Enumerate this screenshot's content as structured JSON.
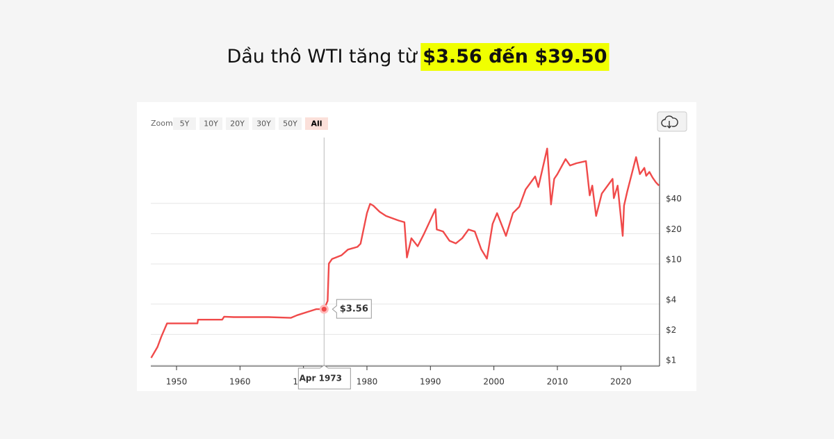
{
  "chart_data": {
    "type": "line",
    "title": "Dầu thô WTI tăng từ",
    "title_highlight": "$3.56 đến $39.50",
    "zoom_label": "Zoom",
    "zoom_buttons": [
      "5Y",
      "10Y",
      "20Y",
      "30Y",
      "50Y",
      "All"
    ],
    "log_scale": true,
    "grid": true,
    "color": "#f04a4a",
    "xlim": [
      1945.95,
      2026.1
    ],
    "xticks": [
      1950,
      1960,
      1970,
      1980,
      1990,
      2000,
      2010,
      2020
    ],
    "ylim": [
      0.97,
      180
    ],
    "yticks": [
      {
        "value": 1,
        "label": "$1"
      },
      {
        "value": 2,
        "label": "$2"
      },
      {
        "value": 4,
        "label": "$4"
      },
      {
        "value": 10,
        "label": "$10"
      },
      {
        "value": 20,
        "label": "$20"
      },
      {
        "value": 40,
        "label": "$40"
      }
    ],
    "x": [
      1946.0,
      1947.0,
      1947.6,
      1948.5,
      1953.3,
      1953.4,
      1957.2,
      1957.5,
      1959.0,
      1964.5,
      1968.0,
      1969.0,
      1971.0,
      1972.0,
      1973.25,
      1973.8,
      1974.0,
      1974.5,
      1976.0,
      1977.0,
      1978.5,
      1979.0,
      1980.0,
      1980.5,
      1981.0,
      1982.0,
      1983.0,
      1985.0,
      1985.9,
      1986.3,
      1987.0,
      1988.0,
      1989.0,
      1990.8,
      1991.0,
      1992.0,
      1993.0,
      1994.0,
      1995.0,
      1996.0,
      1997.0,
      1998.0,
      1998.9,
      1999.8,
      2000.5,
      2001.9,
      2003.0,
      2004.0,
      2005.0,
      2006.5,
      2007.0,
      2008.4,
      2009.0,
      2009.5,
      2010.0,
      2011.3,
      2012.0,
      2013.0,
      2014.5,
      2015.1,
      2015.5,
      2016.1,
      2017.0,
      2018.7,
      2018.9,
      2019.5,
      2020.3,
      2020.5,
      2021.0,
      2022.4,
      2023.0,
      2023.7,
      2024.0,
      2024.5,
      2025.0,
      2025.5,
      2026.0
    ],
    "values": [
      1.17,
      1.5,
      1.9,
      2.57,
      2.57,
      2.8,
      2.8,
      3.0,
      2.97,
      2.97,
      2.92,
      3.1,
      3.4,
      3.56,
      3.56,
      4.3,
      10.1,
      11.2,
      12.2,
      13.9,
      14.8,
      15.9,
      32,
      39.5,
      38,
      33,
      30,
      27,
      26,
      11.6,
      18,
      15,
      20,
      35,
      22,
      21,
      17,
      16,
      18,
      22,
      21,
      14,
      11.3,
      25,
      32,
      19,
      32,
      37,
      55,
      74,
      58,
      140,
      39,
      70,
      78,
      110,
      95,
      100,
      105,
      48,
      60,
      30,
      50,
      70,
      45,
      60,
      19,
      38,
      52,
      115,
      78,
      90,
      75,
      82,
      72,
      65,
      60
    ],
    "annotation": {
      "x": 1973.25,
      "x_label": "Apr 1973",
      "y": 3.56,
      "y_label": "$3.56"
    }
  }
}
